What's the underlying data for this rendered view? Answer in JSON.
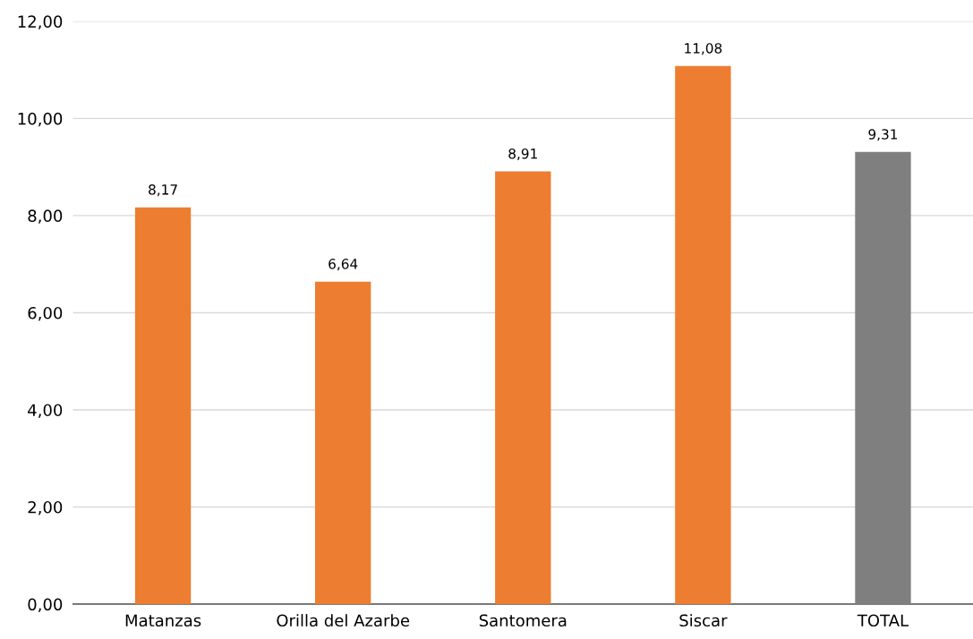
{
  "chart_data": {
    "type": "bar",
    "categories": [
      "Matanzas",
      "Orilla del Azarbe",
      "Santomera",
      "Siscar",
      "TOTAL"
    ],
    "values": [
      8.17,
      6.64,
      8.91,
      11.08,
      9.31
    ],
    "colors": [
      "#ed7d31",
      "#ed7d31",
      "#ed7d31",
      "#ed7d31",
      "#7f7f7f"
    ],
    "value_labels": [
      "8,17",
      "6,64",
      "8,91",
      "11,08",
      "9,31"
    ],
    "ylim": [
      0,
      12
    ],
    "yticks": [
      {
        "value": 0,
        "label": "0,00"
      },
      {
        "value": 2,
        "label": "2,00"
      },
      {
        "value": 4,
        "label": "4,00"
      },
      {
        "value": 6,
        "label": "6,00"
      },
      {
        "value": 8,
        "label": "8,00"
      },
      {
        "value": 10,
        "label": "10,00"
      },
      {
        "value": 12,
        "label": "12,00"
      }
    ],
    "grid": "y",
    "legend": false
  }
}
